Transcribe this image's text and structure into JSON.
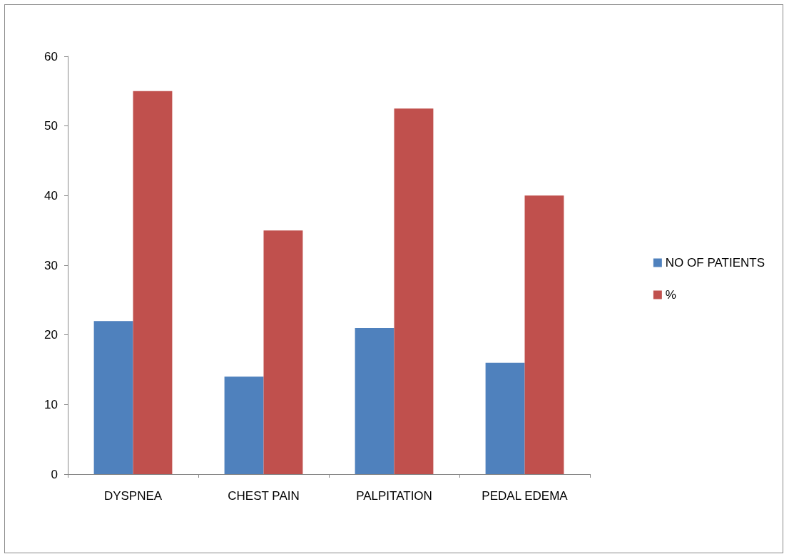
{
  "chart_data": {
    "type": "bar",
    "categories": [
      "DYSPNEA",
      "CHEST PAIN",
      "PALPITATION",
      "PEDAL EDEMA"
    ],
    "series": [
      {
        "name": "NO OF PATIENTS",
        "color": "#4f81bd",
        "values": [
          22,
          14,
          21,
          16
        ]
      },
      {
        "name": "%",
        "color": "#c0504d",
        "values": [
          55,
          35,
          52.5,
          40
        ]
      }
    ],
    "ylim": [
      0,
      60
    ],
    "yticks": [
      0,
      10,
      20,
      30,
      40,
      50,
      60
    ],
    "grid": false,
    "legend": "right"
  }
}
